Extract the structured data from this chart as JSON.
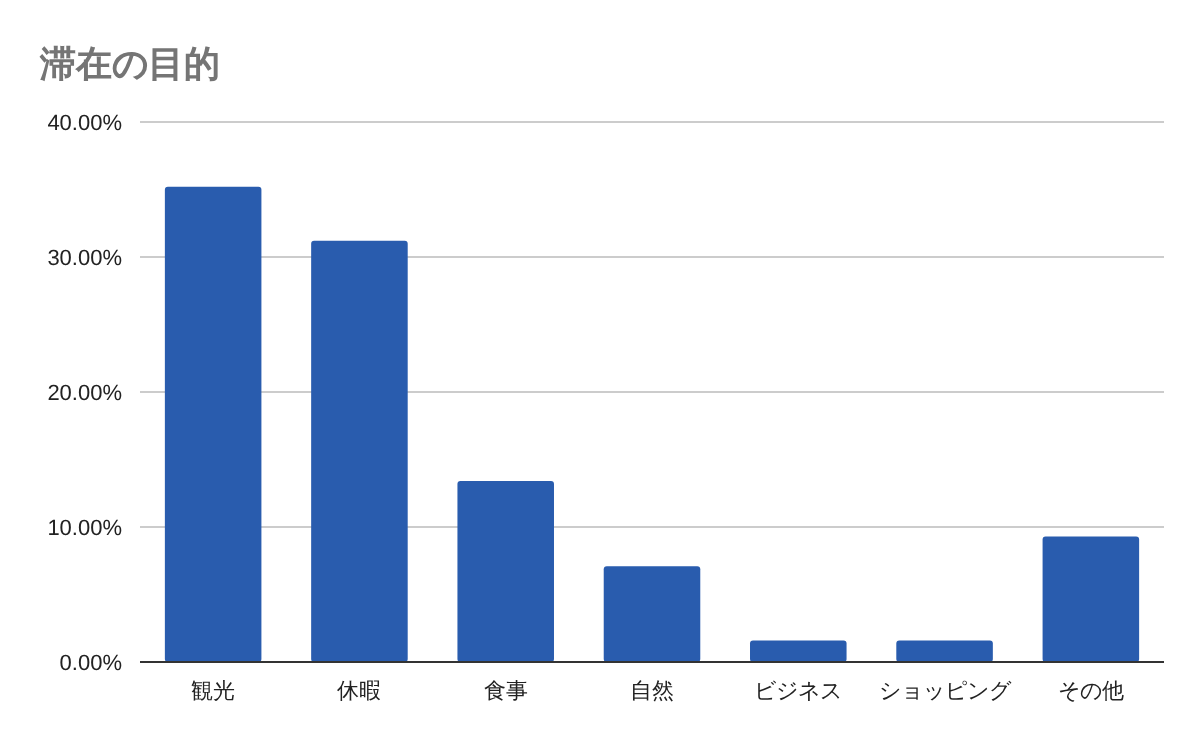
{
  "chart_data": {
    "type": "bar",
    "title": "滞在の目的",
    "categories": [
      "観光",
      "休暇",
      "食事",
      "自然",
      "ビジネス",
      "ショッピング",
      "その他"
    ],
    "values": [
      35.2,
      31.2,
      13.4,
      7.1,
      1.6,
      1.6,
      9.3
    ],
    "color": "#295cae",
    "ylim": [
      0,
      40
    ],
    "yticks": [
      {
        "value": 0,
        "label": "0.00%"
      },
      {
        "value": 10,
        "label": "10.00%"
      },
      {
        "value": 20,
        "label": "20.00%"
      },
      {
        "value": 30,
        "label": "30.00%"
      },
      {
        "value": 40,
        "label": "40.00%"
      }
    ],
    "grid": "y"
  }
}
